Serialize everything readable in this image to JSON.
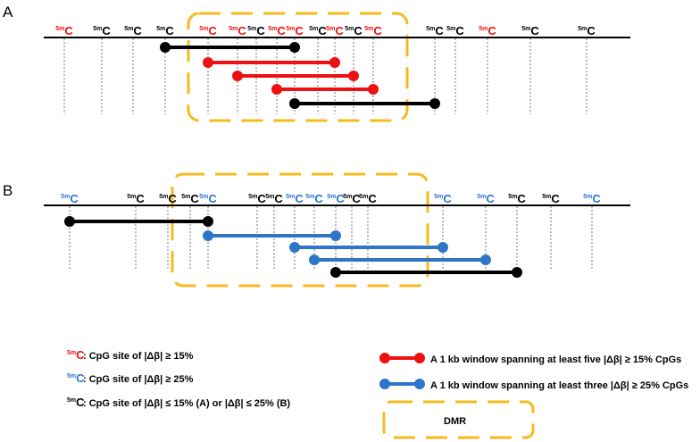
{
  "colors": {
    "red": "#ee1111",
    "blue": "#2e75c8",
    "black": "#000000",
    "dmr": "#f5bb1e",
    "guide": "#777777"
  },
  "panels": [
    {
      "label": "A",
      "sites": [
        {
          "text": "5mC",
          "color": "red"
        },
        {
          "text": "5mC",
          "color": "black"
        },
        {
          "text": "5mC",
          "color": "black"
        },
        {
          "text": "5mC",
          "color": "black"
        },
        {
          "text": "5mC",
          "color": "red"
        },
        {
          "text": "5mC",
          "color": "red"
        },
        {
          "text": "5mC",
          "color": "black"
        },
        {
          "text": "5mC",
          "color": "red"
        },
        {
          "text": "5mC",
          "color": "red"
        },
        {
          "text": "5mC",
          "color": "black"
        },
        {
          "text": "5mC",
          "color": "red"
        },
        {
          "text": "5mC",
          "color": "black"
        },
        {
          "text": "5mC",
          "color": "red"
        },
        {
          "text": "5mC",
          "color": "black"
        },
        {
          "text": "5mC",
          "color": "black"
        },
        {
          "text": "5mC",
          "color": "red"
        },
        {
          "text": "5mC",
          "color": "black"
        },
        {
          "text": "5mC",
          "color": "black"
        }
      ],
      "windows": [
        {
          "from": 3,
          "to": 8,
          "color": "black"
        },
        {
          "from": 4,
          "to": 10,
          "color": "red"
        },
        {
          "from": 5,
          "to": 11,
          "color": "red"
        },
        {
          "from": 7,
          "to": 12,
          "color": "red"
        },
        {
          "from": 8,
          "to": 13,
          "color": "black"
        }
      ],
      "dmr": {
        "from": 4,
        "to": 12
      }
    },
    {
      "label": "B",
      "sites": [
        {
          "text": "5mC",
          "color": "blue"
        },
        {
          "text": "5mC",
          "color": "black"
        },
        {
          "text": "5mC",
          "color": "black"
        },
        {
          "text": "5mC",
          "color": "black"
        },
        {
          "text": "5mC",
          "color": "blue"
        },
        {
          "text": "5mC",
          "color": "black"
        },
        {
          "text": "5mC",
          "color": "black"
        },
        {
          "text": "5mC",
          "color": "blue"
        },
        {
          "text": "5mC",
          "color": "blue"
        },
        {
          "text": "5mC",
          "color": "blue"
        },
        {
          "text": "5mC",
          "color": "black"
        },
        {
          "text": "5mC",
          "color": "black"
        },
        {
          "text": "5mC",
          "color": "blue"
        },
        {
          "text": "5mC",
          "color": "blue"
        },
        {
          "text": "5mC",
          "color": "black"
        },
        {
          "text": "5mC",
          "color": "black"
        },
        {
          "text": "5mC",
          "color": "blue"
        }
      ],
      "windows": [
        {
          "from": 0,
          "to": 4,
          "color": "black"
        },
        {
          "from": 4,
          "to": 9,
          "color": "blue"
        },
        {
          "from": 7,
          "to": 12,
          "color": "blue"
        },
        {
          "from": 8,
          "to": 13,
          "color": "blue"
        },
        {
          "from": 9,
          "to": 14,
          "color": "black"
        }
      ],
      "dmr": {
        "from": 4,
        "to": 13
      }
    }
  ],
  "legend": {
    "left": [
      {
        "sup": "5m",
        "c": "C",
        "color": "red",
        "text": ": CpG site of |Δβ| ≥ 15%"
      },
      {
        "sup": "5m",
        "c": "C",
        "color": "blue",
        "text": ": CpG site of |Δβ| ≥ 25%"
      },
      {
        "sup": "5m",
        "c": "C",
        "color": "black",
        "text": ": CpG site of |Δβ| ≤ 15% (A) or |Δβ| ≤ 25% (B)"
      }
    ],
    "right": [
      {
        "color": "red",
        "text": "A 1 kb window spanning at least five |Δβ| ≥ 15% CpGs"
      },
      {
        "color": "blue",
        "text": "A 1 kb window spanning at least three |Δβ| ≥ 25% CpGs"
      }
    ],
    "dmr_label": "DMR"
  }
}
